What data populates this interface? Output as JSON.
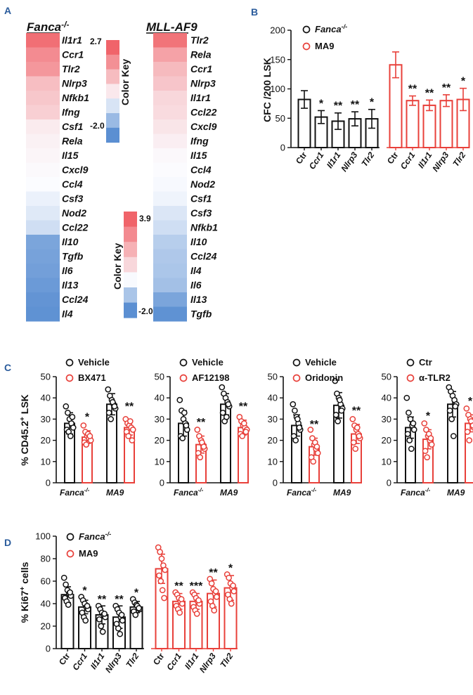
{
  "panel_letters": [
    "A",
    "B",
    "C",
    "D"
  ],
  "colors": {
    "black": "#111111",
    "red": "#e8403a",
    "letter_blue": "#2b5c9c",
    "heat_high": "#f0646a",
    "heat_mid": "#fbfcff",
    "heat_low": "#5b8fd2"
  },
  "panel_A": {
    "heatmaps": [
      {
        "title_main": "Fanca",
        "title_sup": "-/-",
        "genes": [
          "Il1r1",
          "Ccr1",
          "Tlr2",
          "Nlrp3",
          "Nfkb1",
          "Ifng",
          "Csf1",
          "Rela",
          "Il15",
          "Cxcl9",
          "Ccl4",
          "Csf3",
          "Nod2",
          "Ccl22",
          "Il10",
          "Tgfb",
          "Il6",
          "Il13",
          "Ccl24",
          "Il4"
        ],
        "values": [
          2.5,
          2.0,
          1.8,
          1.1,
          0.95,
          0.8,
          0.3,
          0.2,
          0.12,
          0.05,
          0.0,
          -0.2,
          -0.35,
          -0.55,
          -1.6,
          -1.65,
          -1.7,
          -1.8,
          -1.9,
          -1.95
        ],
        "color_key": {
          "label": "Color Key",
          "max": "2.7",
          "min": "-2.0"
        }
      },
      {
        "title_main": "MLL-AF9",
        "title_sup": "",
        "genes": [
          "Tlr2",
          "Rela",
          "Ccr1",
          "Nlrp3",
          "Il1r1",
          "Ccl22",
          "Cxcl9",
          "Ifng",
          "Il15",
          "Ccl4",
          "Nod2",
          "Csf1",
          "Csf3",
          "Nfkb1",
          "Il10",
          "Ccl24",
          "Il4",
          "Il6",
          "Il13",
          "Tgfb"
        ],
        "values": [
          3.5,
          2.3,
          1.7,
          1.4,
          0.95,
          0.85,
          0.6,
          0.35,
          0.1,
          0.02,
          -0.05,
          -0.15,
          -0.4,
          -0.55,
          -0.85,
          -0.95,
          -1.0,
          -1.1,
          -1.6,
          -1.95
        ],
        "color_key": {
          "label": "Color Key",
          "max": "3.9",
          "min": "-2.0"
        }
      }
    ]
  },
  "chart_data": [
    {
      "panel": "B",
      "type": "bar",
      "ylabel": "CFC /200 LSK",
      "ylim": [
        0,
        200
      ],
      "yticks": [
        "0",
        "50",
        "100",
        "150",
        "200"
      ],
      "legend": [
        "Fanca-/-",
        "MA9"
      ],
      "series": [
        {
          "name": "Fanca-/-",
          "categories": [
            "Ctr",
            "Ccr1",
            "Il1r1",
            "Nlrp3",
            "Tlr2"
          ],
          "values": [
            82,
            52,
            45,
            49,
            49
          ],
          "errors": [
            15,
            11,
            14,
            12,
            16
          ],
          "stars": [
            "",
            "*",
            "**",
            "**",
            "*"
          ]
        },
        {
          "name": "MA9",
          "categories": [
            "Ctr",
            "Ccr1",
            "Il1r1",
            "Nlrp3",
            "Tlr2"
          ],
          "values": [
            141,
            80,
            72,
            80,
            82
          ],
          "errors": [
            22,
            8,
            9,
            10,
            19
          ],
          "stars": [
            "",
            "**",
            "**",
            "**",
            "*"
          ]
        }
      ]
    },
    {
      "panel": "C",
      "type": "bar",
      "ylabel": "% CD45.2+ LSK",
      "ylim": [
        0,
        50
      ],
      "yticks": [
        "0",
        "10",
        "20",
        "30",
        "40",
        "50"
      ],
      "subplots": [
        {
          "legend": [
            "Vehicle",
            "BX471"
          ],
          "groups": [
            "Fanca-/-",
            "MA9"
          ],
          "black": [
            28,
            37
          ],
          "black_err": [
            5,
            5
          ],
          "red": [
            21.5,
            26
          ],
          "red_err": [
            3,
            3.5
          ],
          "stars": [
            "*",
            "**"
          ],
          "black_pts": [
            [
              36,
              33,
              30,
              28,
              26,
              25,
              24,
              22,
              31
            ],
            [
              44,
              41,
              39,
              37,
              35,
              33,
              30,
              38,
              36
            ]
          ],
          "red_pts": [
            [
              27,
              24,
              22,
              21,
              20,
              19,
              18,
              23,
              22
            ],
            [
              30,
              28,
              27,
              26,
              25,
              24,
              22,
              29,
              20
            ]
          ]
        },
        {
          "legend": [
            "Vehicle",
            "AF12198"
          ],
          "groups": [
            "Fanca-/-",
            "MA9"
          ],
          "black": [
            28,
            37
          ],
          "black_err": [
            6,
            5
          ],
          "red": [
            18,
            26
          ],
          "red_err": [
            4,
            3.5
          ],
          "stars": [
            "**",
            "**"
          ],
          "black_pts": [
            [
              39,
              34,
              30,
              28,
              25,
              22,
              21,
              33,
              27
            ],
            [
              45,
              42,
              40,
              38,
              36,
              33,
              29,
              31,
              37
            ]
          ],
          "red_pts": [
            [
              25,
              22,
              20,
              18,
              16,
              14,
              12,
              19,
              17
            ],
            [
              31,
              29,
              27,
              26,
              25,
              23,
              22,
              28,
              24
            ]
          ]
        },
        {
          "legend": [
            "Vehicle",
            "Oridonin"
          ],
          "groups": [
            "Fanca-/-",
            "MA9"
          ],
          "black": [
            27,
            36.5
          ],
          "black_err": [
            5,
            6
          ],
          "red": [
            17,
            23
          ],
          "red_err": [
            4,
            4.5
          ],
          "stars": [
            "**",
            "**"
          ],
          "black_pts": [
            [
              37,
              34,
              31,
              28,
              25,
              22,
              20,
              30,
              26
            ],
            [
              48,
              42,
              40,
              37,
              35,
              32,
              29,
              39,
              34
            ]
          ],
          "red_pts": [
            [
              25,
              21,
              18,
              16,
              14,
              12,
              10,
              19,
              17
            ],
            [
              30,
              27,
              25,
              23,
              21,
              19,
              16,
              26,
              22
            ]
          ]
        },
        {
          "legend": [
            "Ctr",
            "α-TLR2"
          ],
          "groups": [
            "Fanca-/-",
            "MA9"
          ],
          "black": [
            26,
            37
          ],
          "black_err": [
            5,
            6
          ],
          "red": [
            20.5,
            28
          ],
          "red_err": [
            4.5,
            4
          ],
          "stars": [
            "*",
            "*"
          ],
          "black_pts": [
            [
              40,
              33,
              30,
              27,
              25,
              23,
              20,
              16,
              28
            ],
            [
              45,
              43,
              41,
              39,
              37,
              34,
              30,
              22,
              36
            ]
          ],
          "red_pts": [
            [
              28,
              25,
              22,
              20,
              18,
              15,
              12,
              23,
              21
            ],
            [
              35,
              32,
              30,
              28,
              26,
              24,
              20,
              29,
              27
            ]
          ]
        }
      ]
    },
    {
      "panel": "D",
      "type": "bar",
      "ylabel": "% Ki67+ cells",
      "ylim": [
        0,
        100
      ],
      "yticks": [
        "0",
        "20",
        "40",
        "60",
        "80",
        "100"
      ],
      "legend": [
        "Fanca-/-",
        "MA9"
      ],
      "series": [
        {
          "name": "Fanca-/-",
          "categories": [
            "Ctr",
            "Ccr1",
            "Il1r1",
            "Nlrp3",
            "Tlr2"
          ],
          "values": [
            48,
            37,
            30,
            28,
            37
          ],
          "errors": [
            7,
            6,
            8,
            10,
            5
          ],
          "stars": [
            "",
            "*",
            "**",
            "**",
            "*"
          ],
          "points": [
            [
              63,
              57,
              52,
              49,
              47,
              45,
              42,
              39,
              50
            ],
            [
              46,
              43,
              40,
              37,
              35,
              32,
              28,
              25,
              38
            ],
            [
              38,
              35,
              32,
              30,
              28,
              26,
              20,
              15,
              31
            ],
            [
              38,
              35,
              32,
              28,
              25,
              22,
              18,
              13,
              30
            ],
            [
              44,
              41,
              39,
              37,
              35,
              33,
              30,
              38,
              36
            ]
          ]
        },
        {
          "name": "MA9",
          "categories": [
            "Ctr",
            "Ccr1",
            "Il1r1",
            "Nlrp3",
            "Tlr2"
          ],
          "values": [
            71,
            42,
            42,
            49,
            54
          ],
          "errors": [
            13,
            7,
            7,
            12,
            11
          ],
          "stars": [
            "",
            "**",
            "***",
            "**",
            "*"
          ],
          "points": [
            [
              90,
              86,
              80,
              74,
              70,
              65,
              60,
              52,
              45
            ],
            [
              50,
              48,
              45,
              42,
              40,
              38,
              35,
              32,
              44
            ],
            [
              50,
              48,
              45,
              42,
              40,
              37,
              34,
              31,
              43
            ],
            [
              62,
              58,
              53,
              49,
              46,
              42,
              38,
              34,
              51
            ],
            [
              66,
              63,
              58,
              54,
              51,
              48,
              44,
              40,
              56
            ]
          ]
        }
      ]
    }
  ],
  "text": {
    "b_xlabels": [
      "Ctr",
      "Ccr1",
      "Il1r1",
      "Nlrp3",
      "Tlr2"
    ],
    "c_xgroups": [
      "Fanca-/-",
      "MA9"
    ]
  }
}
